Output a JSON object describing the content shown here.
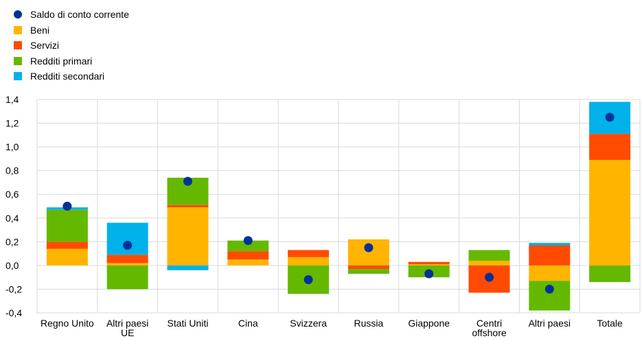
{
  "chart_data": {
    "type": "bar",
    "stacked": true,
    "categories": [
      "Regno Unito",
      "Altri paesi UE",
      "Stati Uniti",
      "Cina",
      "Svizzera",
      "Russia",
      "Giappone",
      "Centri offshore",
      "Altri paesi",
      "Totale"
    ],
    "category_lines": [
      [
        "Regno Unito"
      ],
      [
        "Altri paesi",
        "UE"
      ],
      [
        "Stati Uniti"
      ],
      [
        "Cina"
      ],
      [
        "Svizzera"
      ],
      [
        "Russia"
      ],
      [
        "Giappone"
      ],
      [
        "Centri",
        "offshore"
      ],
      [
        "Altri paesi"
      ],
      [
        "Totale"
      ]
    ],
    "series": [
      {
        "name": "Beni",
        "color": "#FFB400",
        "values": [
          0.14,
          0.02,
          0.49,
          0.05,
          0.07,
          0.22,
          0.01,
          0.04,
          -0.13,
          0.89
        ]
      },
      {
        "name": "Servizi",
        "color": "#FF4B00",
        "values": [
          0.06,
          0.07,
          0.02,
          0.07,
          0.06,
          -0.03,
          0.02,
          -0.23,
          0.17,
          0.22
        ]
      },
      {
        "name": "Redditi primari",
        "color": "#65B800",
        "values": [
          0.27,
          -0.2,
          0.23,
          0.09,
          -0.24,
          -0.04,
          -0.1,
          0.09,
          -0.25,
          -0.14
        ]
      },
      {
        "name": "Redditi secondari",
        "color": "#00B1EA",
        "values": [
          0.02,
          0.27,
          -0.04,
          0.0,
          0.0,
          0.0,
          0.0,
          0.0,
          0.02,
          0.27
        ]
      }
    ],
    "balance": {
      "name": "Saldo di conto corrente",
      "color": "#003299",
      "values": [
        0.5,
        0.17,
        0.71,
        0.21,
        -0.12,
        0.15,
        -0.07,
        -0.1,
        -0.2,
        1.25
      ]
    },
    "legend_order": [
      "Saldo di conto corrente",
      "Beni",
      "Servizi",
      "Redditi primari",
      "Redditi secondari"
    ],
    "yticks": [
      "1,4",
      "1,2",
      "1,0",
      "0,8",
      "0,6",
      "0,4",
      "0,2",
      "0,0",
      "-0,2",
      "-0,4"
    ],
    "ylim": [
      -0.4,
      1.4
    ],
    "grid": true,
    "legend_position": "top-left",
    "title": "",
    "xlabel": "",
    "ylabel": ""
  }
}
